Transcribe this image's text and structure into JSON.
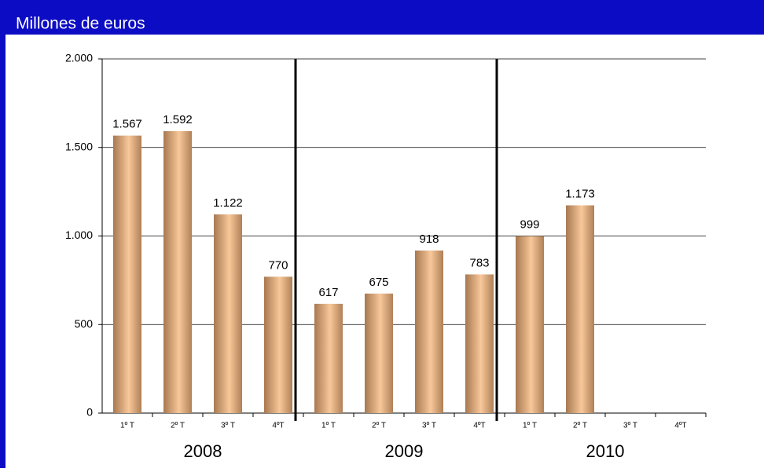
{
  "chart_data": {
    "type": "bar",
    "title": "Millones de euros",
    "categories": [
      "1º T",
      "2º T",
      "3º T",
      "4ºT",
      "1º T",
      "2º T",
      "3º T",
      "4ºT",
      "1º T",
      "2º T",
      "3º T",
      "4ºT"
    ],
    "groups": [
      "2008",
      "2009",
      "2010"
    ],
    "values": [
      1567,
      1592,
      1122,
      770,
      617,
      675,
      918,
      783,
      999,
      1173,
      null,
      null
    ],
    "value_labels": [
      "1.567",
      "1.592",
      "1.122",
      "770",
      "617",
      "675",
      "918",
      "783",
      "999",
      "1.173",
      null,
      null
    ],
    "ylim": [
      0,
      2000
    ],
    "yticks": [
      0,
      500,
      {
        "value": 1000,
        "label": "1.000"
      },
      {
        "value": 1500,
        "label": "1.500"
      },
      {
        "value": 2000,
        "label": "2.000"
      }
    ],
    "grid": true
  }
}
